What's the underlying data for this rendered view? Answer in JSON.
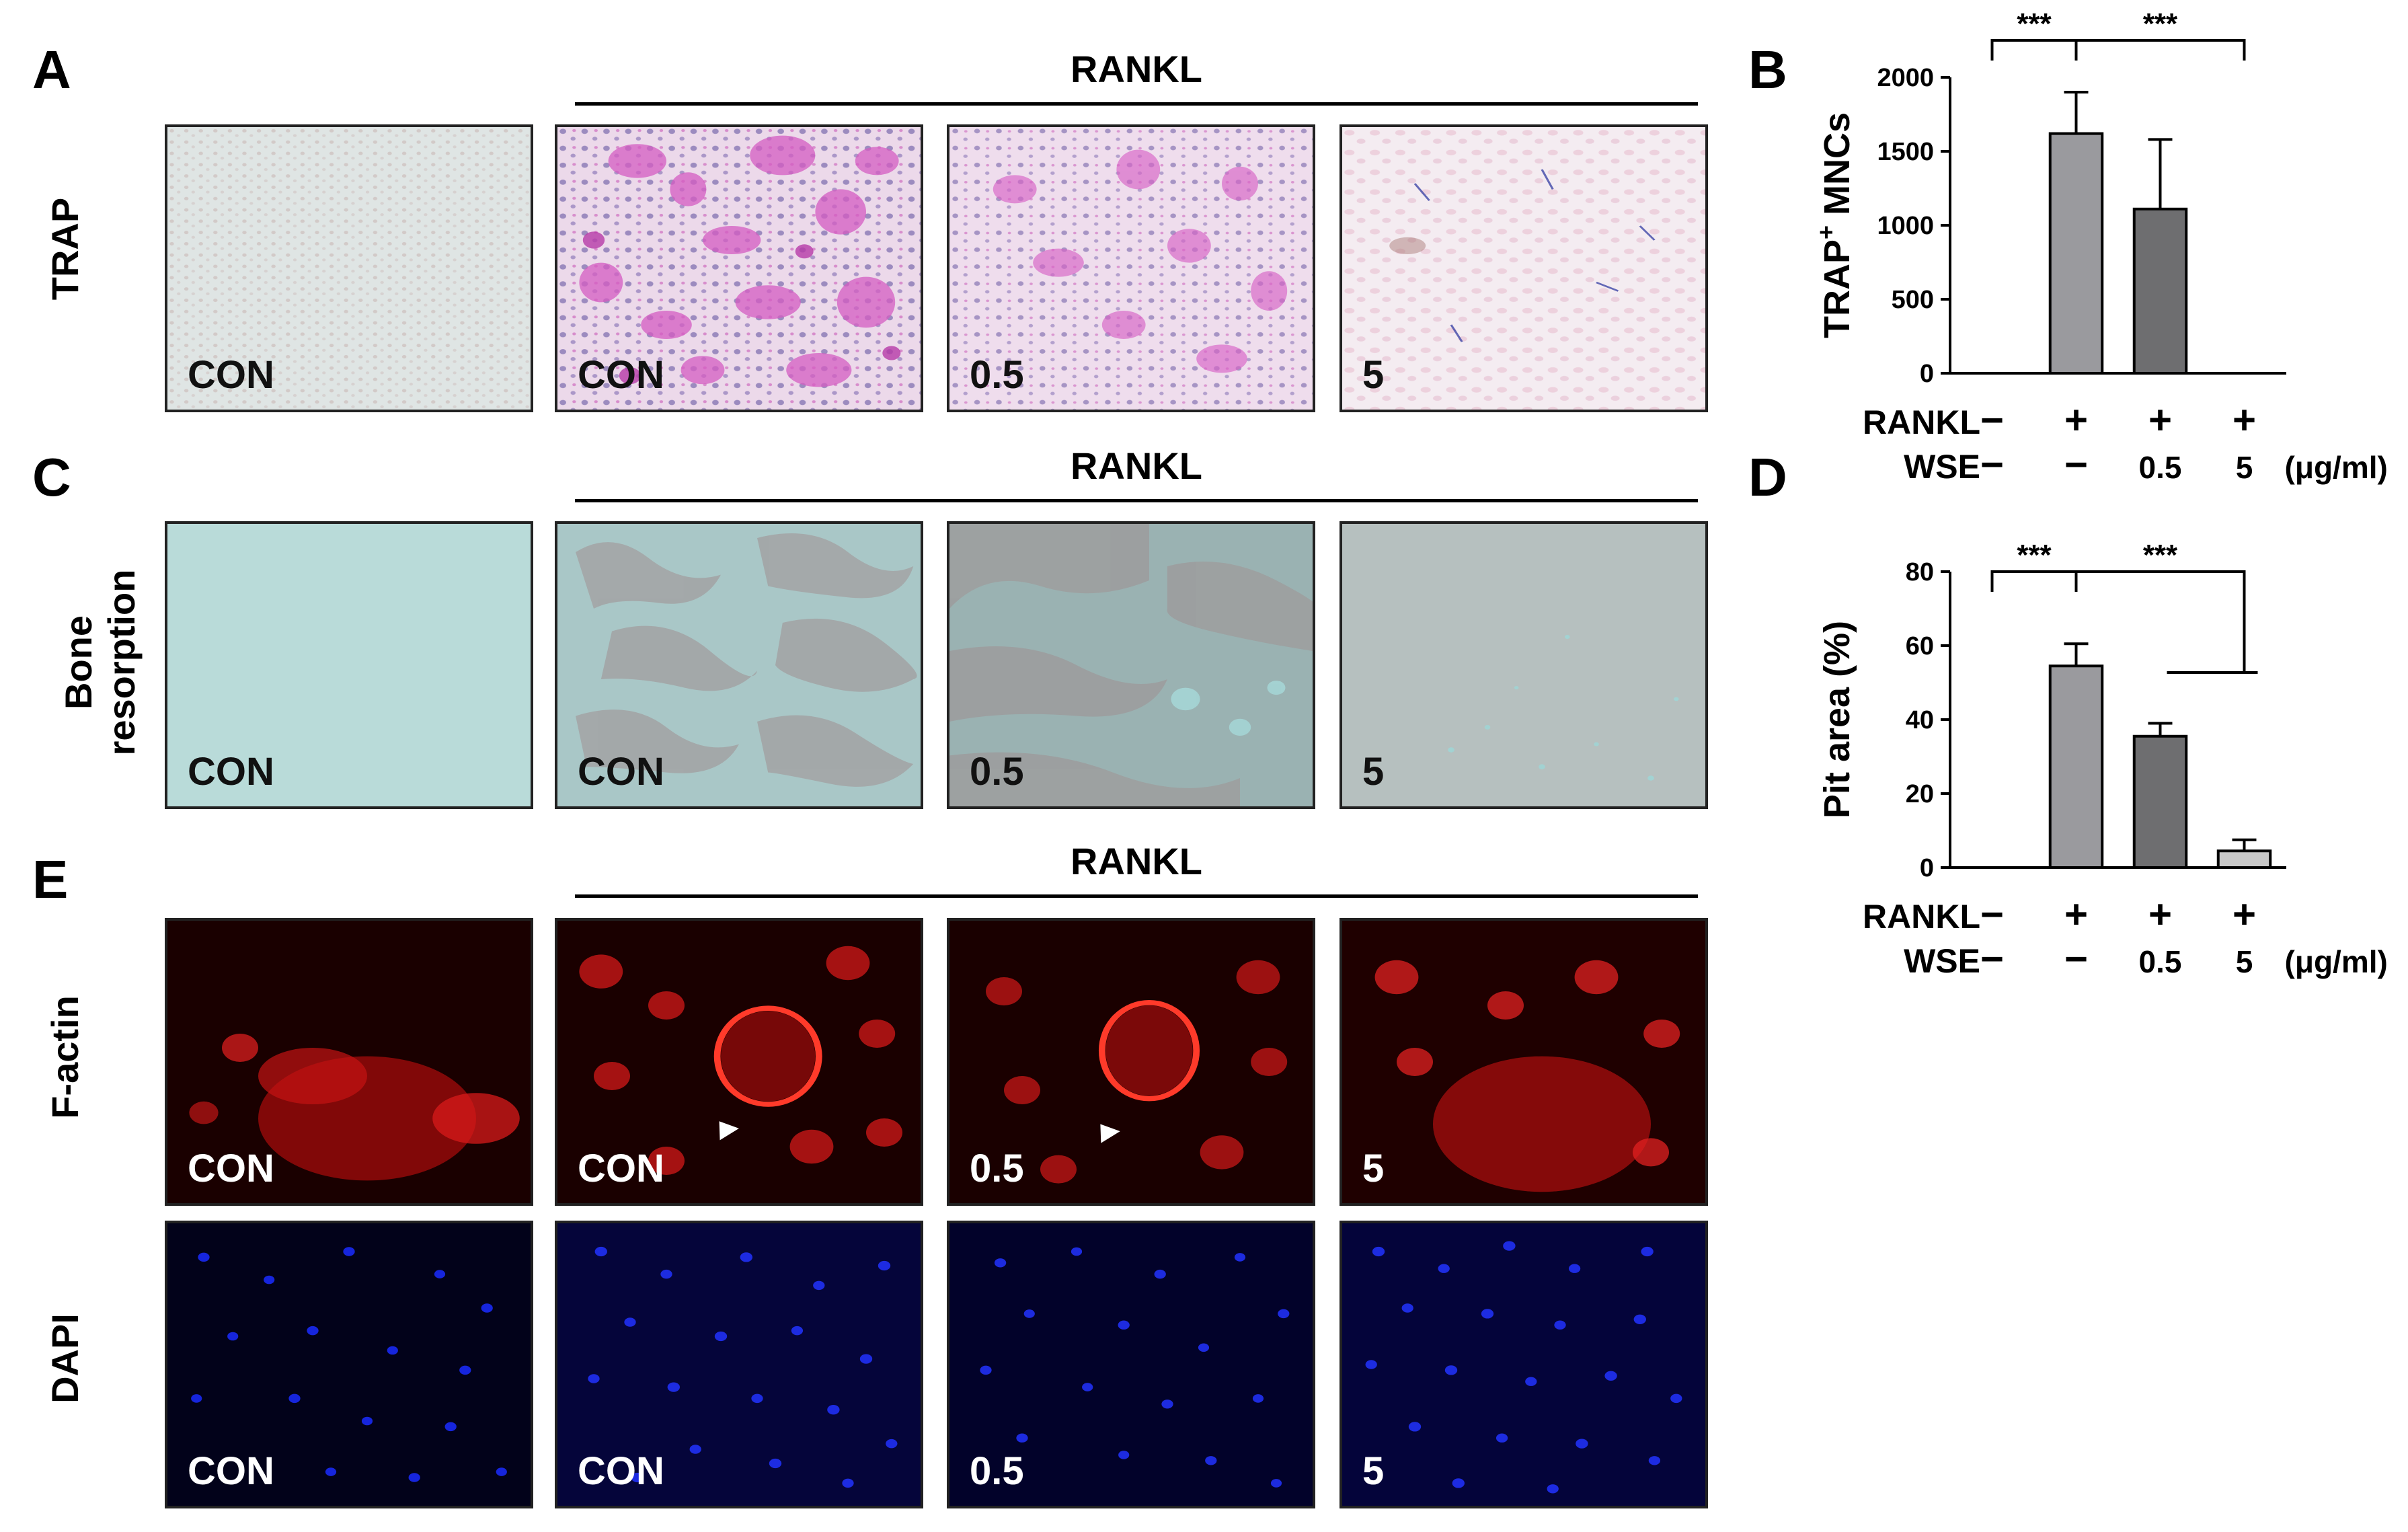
{
  "panel_letters": {
    "A": "A",
    "B": "B",
    "C": "C",
    "D": "D",
    "E": "E"
  },
  "group_header": "RANKL",
  "row_labels": {
    "trap": "TRAP",
    "bone_1": "Bone",
    "bone_2": "resorption",
    "factin": "F-actin",
    "dapi": "DAPI"
  },
  "column_labels": [
    "CON",
    "CON",
    "0.5",
    "5"
  ],
  "chart_data": [
    {
      "type": "bar",
      "panel": "B",
      "ylabel_main": "TRAP",
      "ylabel_sup": "+",
      "ylabel_rest": " MNCs",
      "ylim": [
        0,
        2000
      ],
      "yticks": [
        0,
        500,
        1000,
        1500,
        2000
      ],
      "values": [
        0,
        1620,
        1110,
        0
      ],
      "errors": [
        0,
        280,
        470,
        0
      ],
      "colors": [
        "#9a9a9e",
        "#9a9a9e",
        "#6e6e70",
        "#c8c8c8"
      ],
      "significance": [
        "***",
        "***"
      ],
      "rows": [
        {
          "label": "RANKL",
          "values": [
            "−",
            "+",
            "+",
            "+"
          ]
        },
        {
          "label": "WSE",
          "values": [
            "−",
            "−",
            "0.5",
            "5"
          ]
        }
      ],
      "unit": "(μg/ml)"
    },
    {
      "type": "bar",
      "panel": "D",
      "ylabel": "Pit area (%)",
      "ylim": [
        0,
        80
      ],
      "yticks": [
        0,
        20,
        40,
        60,
        80
      ],
      "values": [
        0,
        54.5,
        35.5,
        4.5
      ],
      "errors": [
        0,
        6,
        3.5,
        3
      ],
      "colors": [
        "#9a9a9e",
        "#9a9a9e",
        "#6e6e70",
        "#c8c8c8"
      ],
      "significance": [
        "***",
        "***"
      ],
      "rows": [
        {
          "label": "RANKL",
          "values": [
            "−",
            "+",
            "+",
            "+"
          ]
        },
        {
          "label": "WSE",
          "values": [
            "−",
            "−",
            "0.5",
            "5"
          ]
        }
      ],
      "unit": "(μg/ml)"
    }
  ]
}
